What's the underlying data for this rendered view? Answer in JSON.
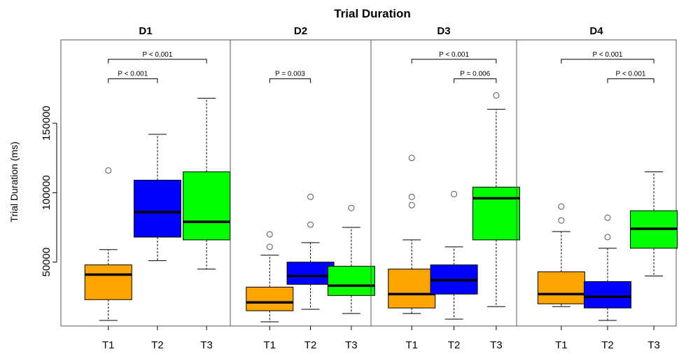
{
  "chart_data": {
    "type": "boxplot",
    "title": "Trial Duration",
    "ylabel": "Trial Duration (ms)",
    "y_ticks": [
      50000,
      100000,
      150000
    ],
    "y_tick_labels": [
      "50000",
      "100000",
      "150000"
    ],
    "ylim": [
      4000,
      210000
    ],
    "categories": [
      "T1",
      "T2",
      "T3"
    ],
    "colors": {
      "T1": "#FFA500",
      "T2": "#0000FF",
      "T3": "#00FF00"
    },
    "panels": [
      {
        "name": "D1",
        "boxes": [
          {
            "cat": "T1",
            "min": 8000,
            "q1": 23000,
            "median": 41000,
            "q3": 48000,
            "max": 59000,
            "outliers": [
              116000
            ]
          },
          {
            "cat": "T2",
            "min": 51000,
            "q1": 68000,
            "median": 86000,
            "q3": 109000,
            "max": 142000,
            "outliers": []
          },
          {
            "cat": "T3",
            "min": 45000,
            "q1": 66000,
            "median": 79000,
            "q3": 115000,
            "max": 168000,
            "outliers": []
          }
        ],
        "significance": [
          {
            "from": "T1",
            "to": "T3",
            "label": "P < 0.001",
            "y": 196000
          },
          {
            "from": "T1",
            "to": "T2",
            "label": "P < 0.001",
            "y": 182000
          }
        ]
      },
      {
        "name": "D2",
        "boxes": [
          {
            "cat": "T1",
            "min": 7000,
            "q1": 15000,
            "median": 21000,
            "q3": 32000,
            "max": 55000,
            "outliers": [
              61000,
              70000
            ]
          },
          {
            "cat": "T2",
            "min": 16000,
            "q1": 34000,
            "median": 40000,
            "q3": 50000,
            "max": 64000,
            "outliers": [
              77000,
              97000
            ]
          },
          {
            "cat": "T3",
            "min": 13000,
            "q1": 26000,
            "median": 33000,
            "q3": 47000,
            "max": 75000,
            "outliers": [
              89000
            ]
          }
        ],
        "significance": [
          {
            "from": "T1",
            "to": "T2",
            "label": "P = 0.003",
            "y": 182000
          }
        ]
      },
      {
        "name": "D3",
        "boxes": [
          {
            "cat": "T1",
            "min": 13000,
            "q1": 17000,
            "median": 27000,
            "q3": 45000,
            "max": 66000,
            "outliers": [
              91000,
              97000,
              125000
            ]
          },
          {
            "cat": "T2",
            "min": 9000,
            "q1": 27000,
            "median": 37000,
            "q3": 48000,
            "max": 61000,
            "outliers": [
              99000
            ]
          },
          {
            "cat": "T3",
            "min": 18000,
            "q1": 66000,
            "median": 96000,
            "q3": 104000,
            "max": 160000,
            "outliers": [
              170000
            ]
          }
        ],
        "significance": [
          {
            "from": "T1",
            "to": "T3",
            "label": "P < 0.001",
            "y": 196000
          },
          {
            "from": "T2",
            "to": "T3",
            "label": "P = 0.006",
            "y": 182000
          }
        ]
      },
      {
        "name": "D4",
        "boxes": [
          {
            "cat": "T1",
            "min": 18000,
            "q1": 20000,
            "median": 27000,
            "q3": 43000,
            "max": 72000,
            "outliers": [
              80000,
              90000
            ]
          },
          {
            "cat": "T2",
            "min": 8000,
            "q1": 17000,
            "median": 25000,
            "q3": 36000,
            "max": 60000,
            "outliers": [
              68000,
              82000
            ]
          },
          {
            "cat": "T3",
            "min": 40000,
            "q1": 60000,
            "median": 74000,
            "q3": 87000,
            "max": 115000,
            "outliers": []
          }
        ],
        "significance": [
          {
            "from": "T1",
            "to": "T3",
            "label": "P < 0.001",
            "y": 196000
          },
          {
            "from": "T2",
            "to": "T3",
            "label": "P < 0.001",
            "y": 182000
          }
        ]
      }
    ]
  }
}
